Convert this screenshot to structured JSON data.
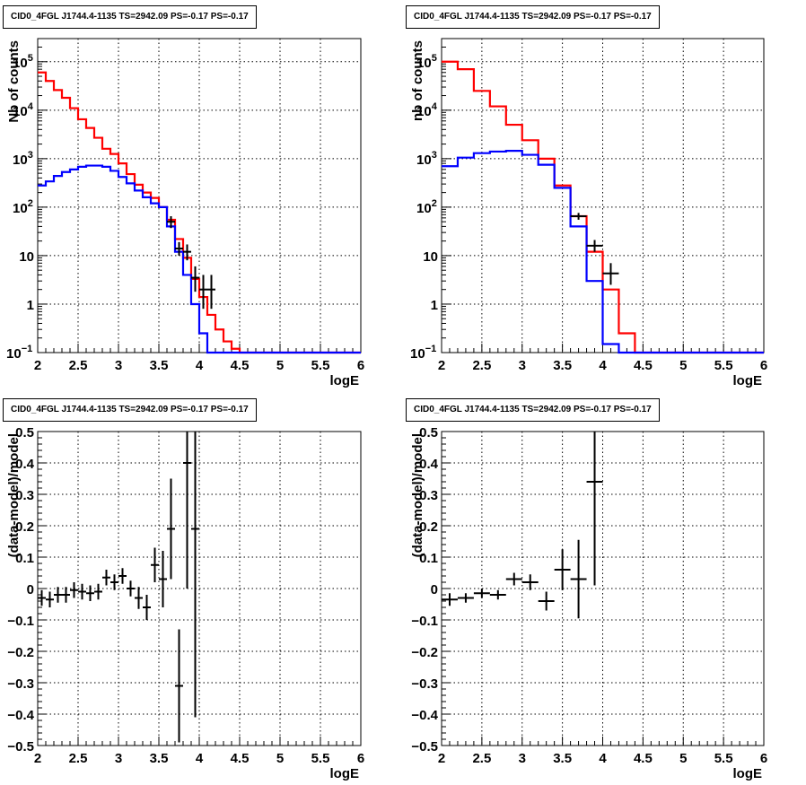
{
  "colors": {
    "model_total": "#ff0000",
    "model_source": "#0000ff",
    "data": "#000000",
    "grid": "#000000",
    "background": "#ffffff"
  },
  "chart_data": [
    {
      "type": "line",
      "panel": "top-left",
      "title": "CID0_4FGL J1744.4-1135 TS=2942.09 PS=-0.17 PS=-0.17",
      "xlabel": "logE",
      "ylabel": "Nb of counts",
      "xlim": [
        2,
        6
      ],
      "ylim": [
        0.1,
        300000
      ],
      "yscale": "log",
      "grid": true,
      "x_ticks": [
        "2",
        "2.5",
        "3",
        "3.5",
        "4",
        "4.5",
        "5",
        "5.5",
        "6"
      ],
      "y_ticks": [
        {
          "v": 0.1,
          "label": "10",
          "exp": "−1"
        },
        {
          "v": 1,
          "label": "1",
          "exp": ""
        },
        {
          "v": 10,
          "label": "10",
          "exp": ""
        },
        {
          "v": 100,
          "label": "10",
          "exp": "2"
        },
        {
          "v": 1000,
          "label": "10",
          "exp": "3"
        },
        {
          "v": 10000,
          "label": "10",
          "exp": "4"
        },
        {
          "v": 100000,
          "label": "10",
          "exp": "5"
        }
      ],
      "series": [
        {
          "role": "model_total",
          "style": "step",
          "edges": [
            2,
            2.1,
            2.2,
            2.3,
            2.4,
            2.5,
            2.6,
            2.7,
            2.8,
            2.9,
            3,
            3.1,
            3.2,
            3.3,
            3.4,
            3.5,
            3.6,
            3.7,
            3.8,
            3.9,
            4,
            4.1,
            4.2,
            4.3,
            4.4,
            4.5,
            4.6,
            6
          ],
          "values": [
            60000,
            40000,
            26000,
            18000,
            11000,
            6500,
            4300,
            2700,
            1600,
            1250,
            800,
            480,
            290,
            200,
            155,
            100,
            55,
            22,
            9,
            3.3,
            1.4,
            0.6,
            0.3,
            0.17,
            0.12,
            0.1,
            0.1
          ]
        },
        {
          "role": "model_source",
          "style": "step",
          "edges": [
            2,
            2.1,
            2.2,
            2.3,
            2.4,
            2.5,
            2.6,
            2.7,
            2.8,
            2.9,
            3,
            3.1,
            3.2,
            3.3,
            3.4,
            3.5,
            3.6,
            3.7,
            3.8,
            3.9,
            4,
            4.1,
            6
          ],
          "values": [
            280,
            340,
            440,
            530,
            600,
            680,
            720,
            720,
            680,
            560,
            420,
            310,
            220,
            160,
            120,
            100,
            40,
            12,
            4,
            1,
            0.25,
            0.1,
            0.1
          ]
        },
        {
          "role": "data",
          "style": "errorbar",
          "points": [
            {
              "x": 3.65,
              "y": 50,
              "lo": 37,
              "hi": 65,
              "dx": 0.05
            },
            {
              "x": 3.75,
              "y": 14,
              "lo": 10,
              "hi": 19,
              "dx": 0.05
            },
            {
              "x": 3.85,
              "y": 12,
              "lo": 8,
              "hi": 17,
              "dx": 0.05
            },
            {
              "x": 3.95,
              "y": 3.5,
              "lo": 1.8,
              "hi": 6,
              "dx": 0.05
            },
            {
              "x": 4.05,
              "y": 2,
              "lo": 0.8,
              "hi": 4,
              "dx": 0.05
            },
            {
              "x": 4.15,
              "y": 2,
              "lo": 0.8,
              "hi": 4,
              "dx": 0.05
            }
          ]
        }
      ]
    },
    {
      "type": "line",
      "panel": "top-right",
      "title": "CID0_4FGL J1744.4-1135 TS=2942.09 PS=-0.17 PS=-0.17",
      "xlabel": "logE",
      "ylabel": "nb of counts",
      "xlim": [
        2,
        6
      ],
      "ylim": [
        0.1,
        300000
      ],
      "yscale": "log",
      "grid": true,
      "x_ticks": [
        "2",
        "2.5",
        "3",
        "3.5",
        "4",
        "4.5",
        "5",
        "5.5",
        "6"
      ],
      "y_ticks": [
        {
          "v": 0.1,
          "label": "10",
          "exp": "−1"
        },
        {
          "v": 1,
          "label": "1",
          "exp": ""
        },
        {
          "v": 10,
          "label": "10",
          "exp": ""
        },
        {
          "v": 100,
          "label": "10",
          "exp": "2"
        },
        {
          "v": 1000,
          "label": "10",
          "exp": "3"
        },
        {
          "v": 10000,
          "label": "10",
          "exp": "4"
        },
        {
          "v": 100000,
          "label": "10",
          "exp": "5"
        }
      ],
      "series": [
        {
          "role": "model_total",
          "style": "step",
          "edges": [
            2,
            2.2,
            2.4,
            2.6,
            2.8,
            3,
            3.2,
            3.4,
            3.6,
            3.8,
            4,
            4.2,
            4.4,
            4.6,
            6
          ],
          "values": [
            100000,
            70000,
            25000,
            12000,
            5000,
            2400,
            1000,
            280,
            65,
            12,
            2,
            0.25,
            0.1,
            0.1
          ]
        },
        {
          "role": "model_source",
          "style": "step",
          "edges": [
            2,
            2.2,
            2.4,
            2.6,
            2.8,
            3,
            3.2,
            3.4,
            3.6,
            3.8,
            4,
            4.2,
            6
          ],
          "values": [
            700,
            1050,
            1300,
            1400,
            1450,
            1200,
            750,
            250,
            40,
            3,
            0.15,
            0.1
          ]
        },
        {
          "role": "data",
          "style": "errorbar",
          "points": [
            {
              "x": 3.7,
              "y": 65,
              "lo": 55,
              "hi": 76,
              "dx": 0.1
            },
            {
              "x": 3.9,
              "y": 16,
              "lo": 12,
              "hi": 21,
              "dx": 0.1
            },
            {
              "x": 4.1,
              "y": 4.3,
              "lo": 2.5,
              "hi": 7,
              "dx": 0.1
            }
          ]
        }
      ]
    },
    {
      "type": "scatter",
      "panel": "bottom-left",
      "title": "CID0_4FGL J1744.4-1135 TS=2942.09 PS=-0.17 PS=-0.17",
      "xlabel": "logE",
      "ylabel": "(data-model)/model",
      "xlim": [
        2,
        6
      ],
      "ylim": [
        -0.5,
        0.5
      ],
      "yscale": "linear",
      "grid": true,
      "x_ticks": [
        "2",
        "2.5",
        "3",
        "3.5",
        "4",
        "4.5",
        "5",
        "5.5",
        "6"
      ],
      "y_ticks": [
        {
          "v": -0.5,
          "label": "−0.5"
        },
        {
          "v": -0.4,
          "label": "−0.4"
        },
        {
          "v": -0.3,
          "label": "−0.3"
        },
        {
          "v": -0.2,
          "label": "−0.2"
        },
        {
          "v": -0.1,
          "label": "−0.1"
        },
        {
          "v": 0,
          "label": "0"
        },
        {
          "v": 0.1,
          "label": "0.1"
        },
        {
          "v": 0.2,
          "label": "0.2"
        },
        {
          "v": 0.3,
          "label": "0.3"
        },
        {
          "v": 0.4,
          "label": "0.4"
        },
        {
          "v": 0.5,
          "label": "0.5"
        }
      ],
      "series": [
        {
          "role": "data",
          "style": "errorbar",
          "points": [
            {
              "x": 2.05,
              "y": -0.03,
              "err": 0.025,
              "dx": 0.05
            },
            {
              "x": 2.15,
              "y": -0.035,
              "err": 0.025,
              "dx": 0.05
            },
            {
              "x": 2.25,
              "y": -0.02,
              "err": 0.025,
              "dx": 0.05
            },
            {
              "x": 2.35,
              "y": -0.02,
              "err": 0.025,
              "dx": 0.05
            },
            {
              "x": 2.45,
              "y": -0.005,
              "err": 0.025,
              "dx": 0.05
            },
            {
              "x": 2.55,
              "y": -0.01,
              "err": 0.025,
              "dx": 0.05
            },
            {
              "x": 2.65,
              "y": -0.015,
              "err": 0.025,
              "dx": 0.05
            },
            {
              "x": 2.75,
              "y": -0.01,
              "err": 0.025,
              "dx": 0.05
            },
            {
              "x": 2.85,
              "y": 0.035,
              "err": 0.025,
              "dx": 0.05
            },
            {
              "x": 2.95,
              "y": 0.02,
              "err": 0.025,
              "dx": 0.05
            },
            {
              "x": 3.05,
              "y": 0.04,
              "err": 0.025,
              "dx": 0.05
            },
            {
              "x": 3.15,
              "y": 0.0,
              "err": 0.025,
              "dx": 0.05
            },
            {
              "x": 3.25,
              "y": -0.03,
              "err": 0.035,
              "dx": 0.05
            },
            {
              "x": 3.35,
              "y": -0.06,
              "err": 0.04,
              "dx": 0.05
            },
            {
              "x": 3.45,
              "y": 0.075,
              "err": 0.055,
              "dx": 0.05
            },
            {
              "x": 3.55,
              "y": 0.03,
              "err": 0.09,
              "dx": 0.05
            },
            {
              "x": 3.65,
              "y": 0.19,
              "err": 0.16,
              "dx": 0.05
            },
            {
              "x": 3.75,
              "y": -0.31,
              "err": 0.18,
              "dx": 0.05
            },
            {
              "x": 3.85,
              "y": 0.4,
              "err": 0.4,
              "dx": 0.05
            },
            {
              "x": 3.95,
              "y": 0.19,
              "err": 0.6,
              "dx": 0.05
            }
          ]
        }
      ]
    },
    {
      "type": "scatter",
      "panel": "bottom-right",
      "title": "CID0_4FGL J1744.4-1135 TS=2942.09 PS=-0.17 PS=-0.17",
      "xlabel": "logE",
      "ylabel": "(data-model)/model",
      "xlim": [
        2,
        6
      ],
      "ylim": [
        -0.5,
        0.5
      ],
      "yscale": "linear",
      "grid": true,
      "x_ticks": [
        "2",
        "2.5",
        "3",
        "3.5",
        "4",
        "4.5",
        "5",
        "5.5",
        "6"
      ],
      "y_ticks": [
        {
          "v": -0.5,
          "label": "−0.5"
        },
        {
          "v": -0.4,
          "label": "−0.4"
        },
        {
          "v": -0.3,
          "label": "−0.3"
        },
        {
          "v": -0.2,
          "label": "−0.2"
        },
        {
          "v": -0.1,
          "label": "−0.1"
        },
        {
          "v": 0,
          "label": "0"
        },
        {
          "v": 0.1,
          "label": "0.1"
        },
        {
          "v": 0.2,
          "label": "0.2"
        },
        {
          "v": 0.3,
          "label": "0.3"
        },
        {
          "v": 0.4,
          "label": "0.4"
        },
        {
          "v": 0.5,
          "label": "0.5"
        }
      ],
      "series": [
        {
          "role": "data",
          "style": "errorbar",
          "points": [
            {
              "x": 2.1,
              "y": -0.035,
              "err": 0.02,
              "dx": 0.1
            },
            {
              "x": 2.3,
              "y": -0.03,
              "err": 0.015,
              "dx": 0.1
            },
            {
              "x": 2.5,
              "y": -0.015,
              "err": 0.015,
              "dx": 0.1
            },
            {
              "x": 2.7,
              "y": -0.02,
              "err": 0.015,
              "dx": 0.1
            },
            {
              "x": 2.9,
              "y": 0.03,
              "err": 0.02,
              "dx": 0.1
            },
            {
              "x": 3.1,
              "y": 0.02,
              "err": 0.025,
              "dx": 0.1
            },
            {
              "x": 3.3,
              "y": -0.04,
              "err": 0.03,
              "dx": 0.1
            },
            {
              "x": 3.5,
              "y": 0.06,
              "err": 0.065,
              "dx": 0.1
            },
            {
              "x": 3.7,
              "y": 0.03,
              "err": 0.125,
              "dx": 0.1
            },
            {
              "x": 3.9,
              "y": 0.34,
              "err": 0.33,
              "dx": 0.1
            }
          ]
        }
      ]
    }
  ]
}
